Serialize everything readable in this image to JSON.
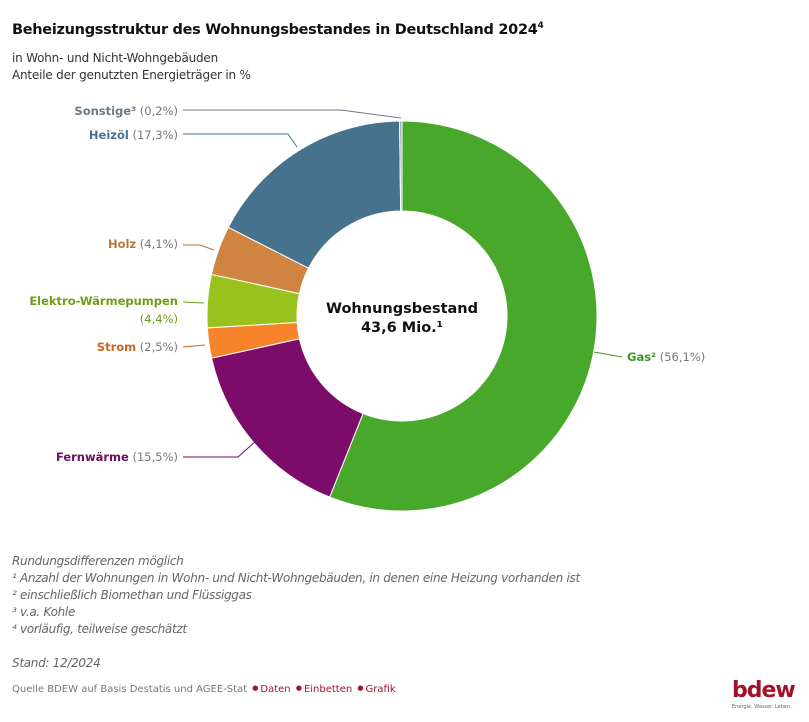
{
  "title": "Beheizungsstruktur des Wohnungsbestandes in Deutschland 2024",
  "title_sup": "4",
  "subtitle_1": "in Wohn- und Nicht-Wohngebäuden",
  "subtitle_2": "Anteile der genutzten Energieträger in %",
  "chart_data": {
    "type": "pie",
    "variant": "donut",
    "start": "12 o'clock, clockwise",
    "center_label_1": "Wohnungsbestand",
    "center_label_2": "43,6 Mio.¹",
    "slices": [
      {
        "name": "Gas²",
        "label": "(56,1%)",
        "value": 56.1,
        "color": "#48a82c",
        "text_color": "#3d9624"
      },
      {
        "name": "Fernwärme",
        "label": "(15,5%)",
        "value": 15.5,
        "color": "#7b0c6a",
        "text_color": "#6e0d60"
      },
      {
        "name": "Strom",
        "label": "(2,5%)",
        "value": 2.5,
        "color": "#f7832a",
        "text_color": "#c9661c"
      },
      {
        "name": "Elektro-Wärmepumpen",
        "label": "(4,4%)",
        "value": 4.4,
        "color": "#9ac21c",
        "text_color": "#6e9e18"
      },
      {
        "name": "Holz",
        "label": "(4,1%)",
        "value": 4.1,
        "color": "#cf8441",
        "text_color": "#b77538"
      },
      {
        "name": "Heizöl",
        "label": "(17,3%)",
        "value": 17.3,
        "color": "#47728e",
        "text_color": "#47728e"
      },
      {
        "name": "Sonstige³",
        "label": "(0,2%)",
        "value": 0.2,
        "color": "#9aaab8",
        "text_color": "#6b7a88"
      }
    ]
  },
  "notes": [
    "Rundungsdifferenzen möglich",
    "¹ Anzahl der Wohnungen in Wohn- und Nicht-Wohngebäuden, in denen eine Heizung vorhanden ist",
    "² einschließlich Biomethan und Flüssiggas",
    "³ v.a. Kohle",
    "⁴ vorläufig, teilweise geschätzt"
  ],
  "stand": "Stand: 12/2024",
  "source": "Quelle BDEW auf Basis Destatis und AGEE-Stat",
  "links": {
    "daten": "Daten",
    "einbetten": "Einbetten",
    "grafik": "Grafik"
  },
  "logo": {
    "text": "bdew",
    "tagline": "Energie. Wasser. Leben.",
    "color": "#a2122a"
  }
}
